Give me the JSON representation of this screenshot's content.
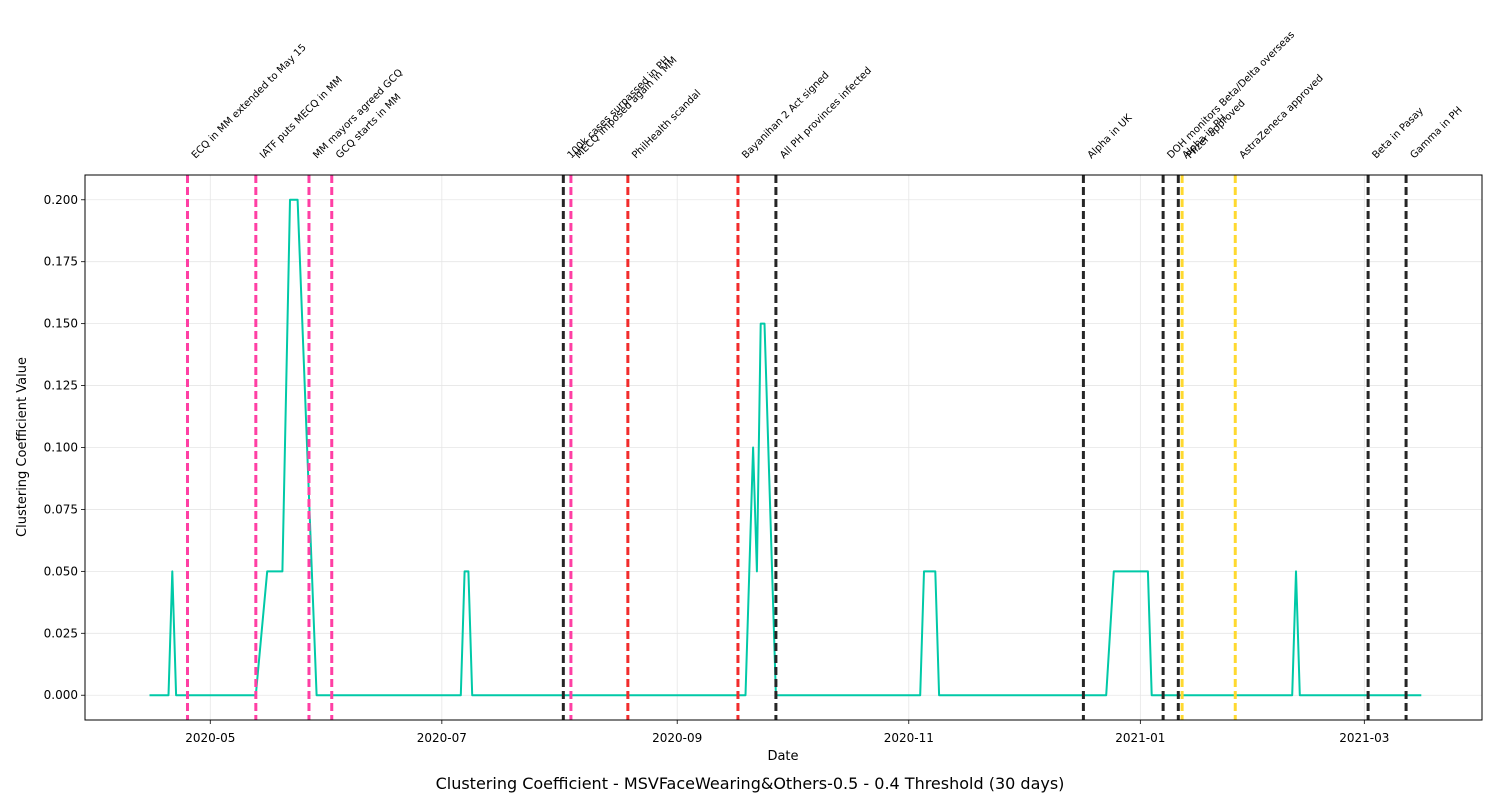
{
  "chart_data": {
    "type": "line",
    "title": "Clustering Coefficient - MSVFaceWearing&Others-0.5 - 0.4 Threshold (30 days)",
    "xlabel": "Date",
    "ylabel": "Clustering Coefficient Value",
    "xlim": [
      "2020-03-29",
      "2021-04-01"
    ],
    "ylim": [
      -0.01,
      0.21
    ],
    "grid": true,
    "y_ticks": [
      0.0,
      0.025,
      0.05,
      0.075,
      0.1,
      0.125,
      0.15,
      0.175,
      0.2
    ],
    "y_tick_labels": [
      "0.000",
      "0.025",
      "0.050",
      "0.075",
      "0.100",
      "0.125",
      "0.150",
      "0.175",
      "0.200"
    ],
    "x_ticks": [
      "2020-05-01",
      "2020-07-01",
      "2020-09-01",
      "2020-11-01",
      "2021-01-01",
      "2021-03-01"
    ],
    "x_tick_labels": [
      "2020-05",
      "2020-07",
      "2020-09",
      "2020-11",
      "2021-01",
      "2021-03"
    ],
    "series": [
      {
        "color": "#00c9a7",
        "points": [
          [
            "2020-04-15",
            0.0
          ],
          [
            "2020-04-20",
            0.0
          ],
          [
            "2020-04-21",
            0.05
          ],
          [
            "2020-04-22",
            0.0
          ],
          [
            "2020-05-13",
            0.0
          ],
          [
            "2020-05-16",
            0.05
          ],
          [
            "2020-05-20",
            0.05
          ],
          [
            "2020-05-22",
            0.2
          ],
          [
            "2020-05-24",
            0.2
          ],
          [
            "2020-05-29",
            0.0
          ],
          [
            "2020-07-06",
            0.0
          ],
          [
            "2020-07-07",
            0.05
          ],
          [
            "2020-07-08",
            0.05
          ],
          [
            "2020-07-09",
            0.0
          ],
          [
            "2020-09-19",
            0.0
          ],
          [
            "2020-09-21",
            0.1
          ],
          [
            "2020-09-22",
            0.05
          ],
          [
            "2020-09-23",
            0.15
          ],
          [
            "2020-09-24",
            0.15
          ],
          [
            "2020-09-27",
            0.0
          ],
          [
            "2020-11-04",
            0.0
          ],
          [
            "2020-11-05",
            0.05
          ],
          [
            "2020-11-08",
            0.05
          ],
          [
            "2020-11-09",
            0.0
          ],
          [
            "2020-12-23",
            0.0
          ],
          [
            "2020-12-25",
            0.05
          ],
          [
            "2021-01-03",
            0.05
          ],
          [
            "2021-01-04",
            0.0
          ],
          [
            "2021-02-10",
            0.0
          ],
          [
            "2021-02-11",
            0.05
          ],
          [
            "2021-02-12",
            0.0
          ],
          [
            "2021-03-16",
            0.0
          ]
        ]
      }
    ],
    "events": [
      {
        "date": "2020-04-25",
        "label": "ECQ in MM extended to May 15",
        "color": "#ff3fa4"
      },
      {
        "date": "2020-05-13",
        "label": "IATF puts MECQ in MM",
        "color": "#ff3fa4"
      },
      {
        "date": "2020-05-27",
        "label": "MM mayors agreed GCQ",
        "color": "#ff3fa4"
      },
      {
        "date": "2020-06-02",
        "label": "GCQ starts in MM",
        "color": "#ff3fa4"
      },
      {
        "date": "2020-08-02",
        "label": "100k cases surpassed in PH",
        "color": "#262626"
      },
      {
        "date": "2020-08-04",
        "label": "MECQ imposed again in MM",
        "color": "#ff3fa4"
      },
      {
        "date": "2020-08-19",
        "label": "PhilHealth scandal",
        "color": "#f22c2c"
      },
      {
        "date": "2020-09-17",
        "label": "Bayanihan 2 Act signed",
        "color": "#f22c2c"
      },
      {
        "date": "2020-09-27",
        "label": "All PH provinces infected",
        "color": "#262626"
      },
      {
        "date": "2020-12-17",
        "label": "Alpha in UK",
        "color": "#262626"
      },
      {
        "date": "2021-01-07",
        "label": "DOH monitors Beta/Delta overseas",
        "color": "#262626"
      },
      {
        "date": "2021-01-11",
        "label": "Alpha in PH",
        "color": "#262626"
      },
      {
        "date": "2021-01-12",
        "label": "Pfizer approved",
        "color": "#ffd92f"
      },
      {
        "date": "2021-01-26",
        "label": "AstraZeneca approved",
        "color": "#ffd92f"
      },
      {
        "date": "2021-03-02",
        "label": "Beta in Pasay",
        "color": "#262626"
      },
      {
        "date": "2021-03-12",
        "label": "Gamma in PH",
        "color": "#262626"
      }
    ]
  }
}
